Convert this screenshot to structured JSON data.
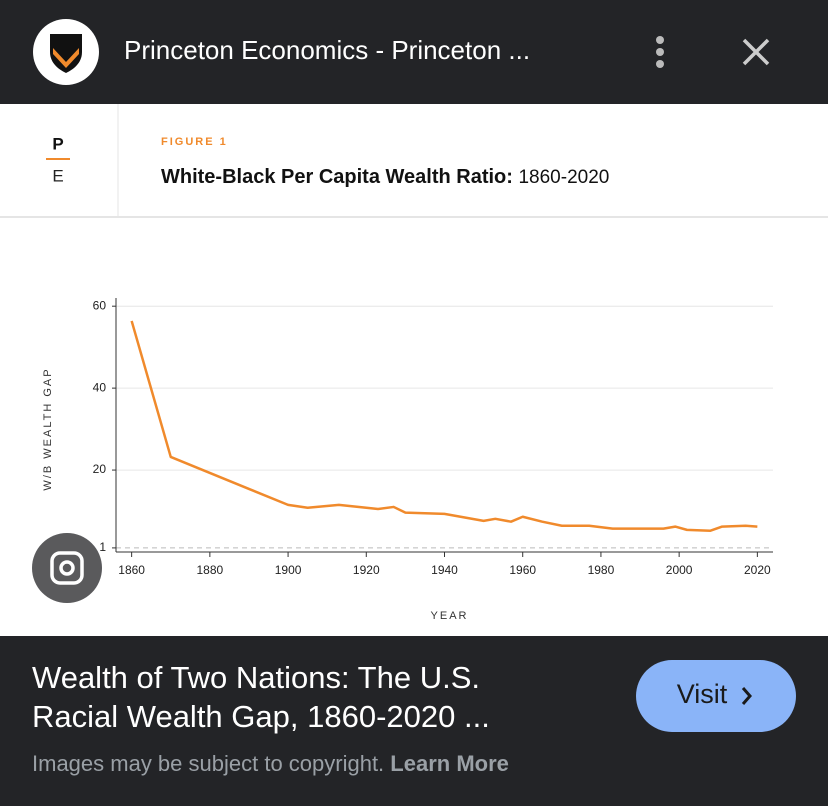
{
  "header": {
    "title": "Princeton Economics - Princeton ..."
  },
  "logo": {
    "top": "P",
    "bottom": "E"
  },
  "chart_data": {
    "type": "line",
    "figure_label": "FIGURE 1",
    "title": "White-Black Per Capita Wealth Ratio:",
    "title_years": "1860-2020",
    "x_label": "YEAR",
    "y_label": "W/B WEALTH GAP",
    "x": [
      1860,
      1870,
      1880,
      1890,
      1900,
      1905,
      1913,
      1920,
      1923,
      1927,
      1930,
      1940,
      1950,
      1953,
      1957,
      1960,
      1965,
      1970,
      1977,
      1983,
      1996,
      1999,
      2002,
      2008,
      2011,
      2017,
      2020
    ],
    "series": [
      {
        "color": "#f08a2c",
        "values": [
          56.4,
          23.2,
          19.3,
          15.4,
          11.5,
          10.8,
          11.5,
          10.8,
          10.5,
          11.0,
          9.6,
          9.3,
          7.6,
          8.1,
          7.4,
          8.6,
          7.4,
          6.4,
          6.4,
          5.7,
          5.7,
          6.2,
          5.4,
          5.2,
          6.2,
          6.4,
          6.2
        ]
      }
    ],
    "xlim": [
      1856,
      2024
    ],
    "ylim": [
      0,
      62
    ],
    "xticks": [
      1860,
      1880,
      1900,
      1920,
      1940,
      1960,
      1980,
      2000,
      2020
    ],
    "yticks": [
      1,
      20,
      40,
      60
    ],
    "grid": true
  },
  "footer": {
    "title_lines": [
      "Wealth of Two Nations: The U.S.",
      "Racial Wealth Gap, 1860-2020 ..."
    ],
    "button": "Visit",
    "notice": "Images may be subject to copyright.",
    "link": "Learn More"
  }
}
